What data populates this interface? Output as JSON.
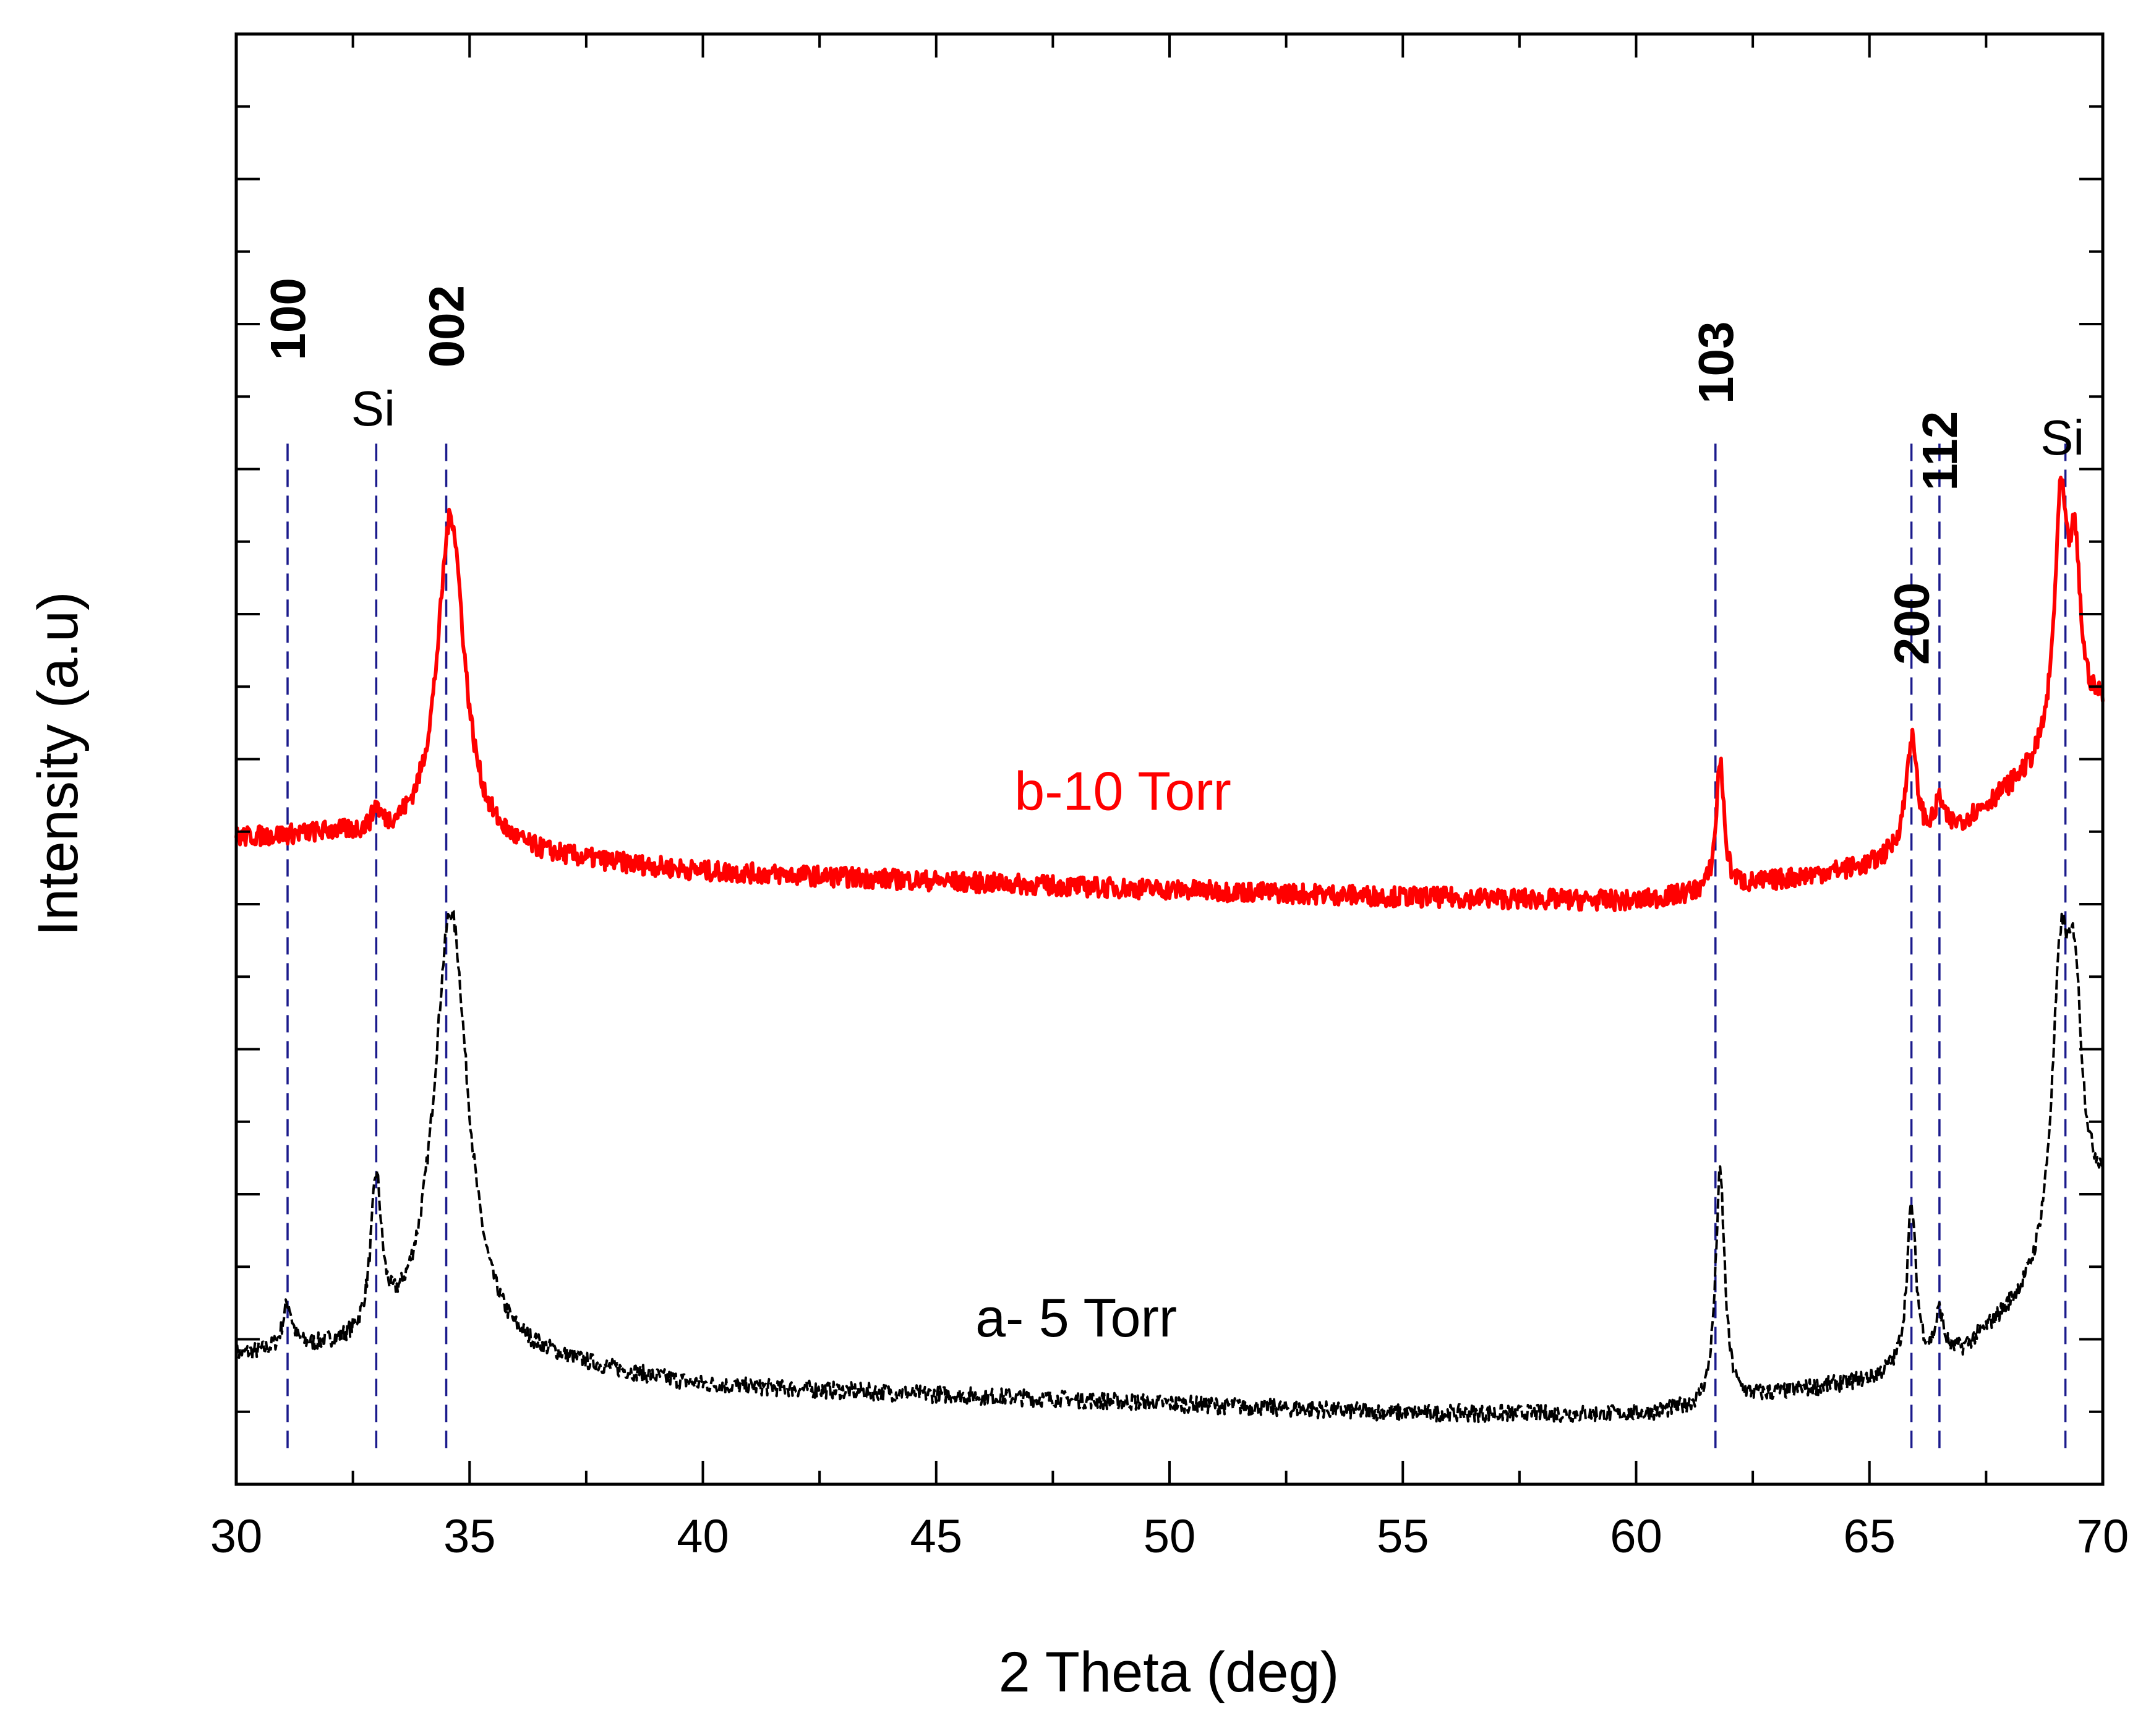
{
  "chart_data": {
    "type": "line",
    "title": "",
    "xlabel": "2 Theta (deg)",
    "ylabel": "Intensity (a.u)",
    "xlim": [
      30,
      70
    ],
    "ylim": [
      0,
      100
    ],
    "x_ticks": [
      30,
      35,
      40,
      45,
      50,
      55,
      60,
      65,
      70
    ],
    "x_tick_labels": [
      "30",
      "35",
      "40",
      "45",
      "50",
      "55",
      "60",
      "65",
      "70"
    ],
    "y_tick_labels_shown": false,
    "grid": false,
    "series": [
      {
        "name": "a- 5 Torr",
        "color": "#000000",
        "style": "dashed",
        "label_at": [
          48,
          10.2
        ],
        "baseline": [
          [
            30,
            8.7
          ],
          [
            32,
            8.9
          ],
          [
            37,
            8.0
          ],
          [
            40,
            6.7
          ],
          [
            48,
            5.8
          ],
          [
            55,
            4.9
          ],
          [
            60,
            4.8
          ],
          [
            61.5,
            5.2
          ],
          [
            63,
            6.2
          ],
          [
            65,
            7.1
          ],
          [
            67,
            9.0
          ],
          [
            68.5,
            13.0
          ],
          [
            70,
            20.0
          ]
        ],
        "peaks": [
          {
            "x": 31.1,
            "height": 3.2,
            "width": 0.12
          },
          {
            "x": 33.0,
            "height": 10.5,
            "width": 0.14
          },
          {
            "x": 34.6,
            "height": 31.0,
            "width": 0.45
          },
          {
            "x": 61.8,
            "height": 16.0,
            "width": 0.12
          },
          {
            "x": 65.9,
            "height": 11.0,
            "width": 0.12
          },
          {
            "x": 66.5,
            "height": 3.0,
            "width": 0.1
          },
          {
            "x": 69.1,
            "height": 19.0,
            "width": 0.22
          },
          {
            "x": 69.4,
            "height": 14.0,
            "width": 0.18
          }
        ],
        "noise": 0.6
      },
      {
        "name": "b-10 Torr",
        "color": "#ff0000",
        "style": "solid",
        "label_at": [
          49,
          46.5
        ],
        "baseline": [
          [
            30,
            44.5
          ],
          [
            32,
            44.7
          ],
          [
            36,
            43.3
          ],
          [
            40,
            42.2
          ],
          [
            48,
            41.2
          ],
          [
            55,
            40.5
          ],
          [
            60,
            40.2
          ],
          [
            61.5,
            40.8
          ],
          [
            63,
            41.6
          ],
          [
            65,
            42.6
          ],
          [
            67,
            45.5
          ],
          [
            68.5,
            49.0
          ],
          [
            70,
            53.5
          ]
        ],
        "peaks": [
          {
            "x": 33.0,
            "height": 1.5,
            "width": 0.1
          },
          {
            "x": 34.6,
            "height": 23.0,
            "width": 0.35
          },
          {
            "x": 61.8,
            "height": 9.0,
            "width": 0.1
          },
          {
            "x": 65.9,
            "height": 7.5,
            "width": 0.14
          },
          {
            "x": 66.5,
            "height": 2.2,
            "width": 0.1
          },
          {
            "x": 69.1,
            "height": 16.0,
            "width": 0.16
          },
          {
            "x": 69.4,
            "height": 11.0,
            "width": 0.15
          }
        ],
        "noise": 0.7
      }
    ],
    "reference_lines": [
      {
        "x": 31.1,
        "label": "100",
        "rotated": true,
        "label_y": 77.5
      },
      {
        "x": 33.0,
        "label": "Si",
        "rotated": false,
        "label_y": 73.0
      },
      {
        "x": 34.5,
        "label": "002",
        "rotated": true,
        "label_y": 77.0
      },
      {
        "x": 61.7,
        "label": "103",
        "rotated": true,
        "label_y": 74.5
      },
      {
        "x": 65.9,
        "label": "200",
        "rotated": true,
        "label_y": 56.5
      },
      {
        "x": 66.5,
        "label": "112",
        "rotated": true,
        "label_y": 68.5
      },
      {
        "x": 69.2,
        "label": "Si",
        "rotated": false,
        "label_y": 71.0
      }
    ],
    "reference_line_color": "#1a1a8c",
    "reference_line_ymin": 2.5,
    "reference_line_ymax": 72.0
  }
}
